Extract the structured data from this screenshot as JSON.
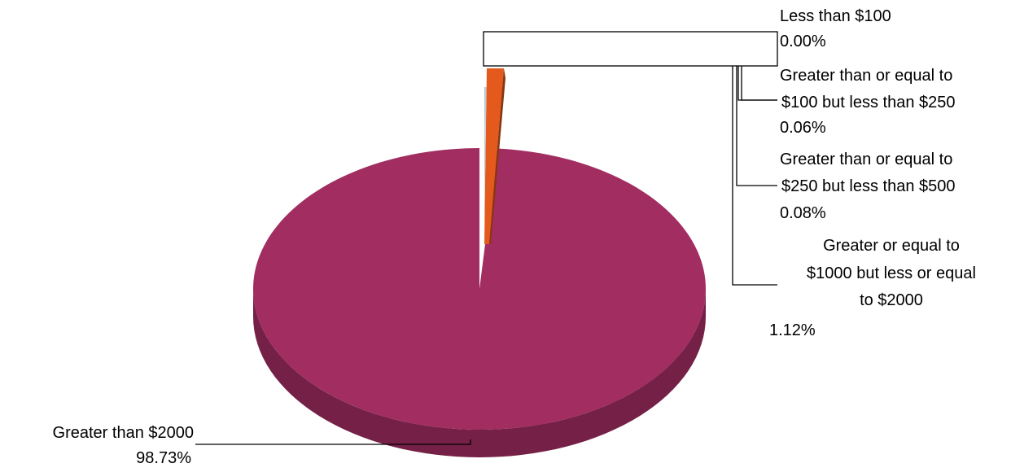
{
  "chart_data": {
    "type": "pie",
    "three_d": true,
    "legend": "none",
    "slices": [
      {
        "label": "Less than $100",
        "value_label": "0.00%",
        "value": 0.0,
        "color": "#4472C4"
      },
      {
        "label": "Greater than or equal to $100 but less than $250",
        "label_lines": [
          "Greater than or equal to",
          "$100 but less than $250"
        ],
        "value_label": "0.06%",
        "value": 0.06,
        "color": "#9DC3E6"
      },
      {
        "label": "Greater than or equal to $250 but less than $500",
        "label_lines": [
          "Greater than or equal to",
          "$250 but less than $500"
        ],
        "value_label": "0.08%",
        "value": 0.08,
        "color": "#C9C9C9"
      },
      {
        "label": "Greater or equal to $1000 but less or equal to $2000",
        "label_lines": [
          "Greater or equal to",
          "$1000 but less or equal",
          "to $2000"
        ],
        "value_label": "1.12%",
        "value": 1.12,
        "color": "#E35A1C"
      },
      {
        "label": "Greater than $2000",
        "value_label": "98.73%",
        "value": 98.73,
        "color": "#A22D61"
      }
    ]
  }
}
